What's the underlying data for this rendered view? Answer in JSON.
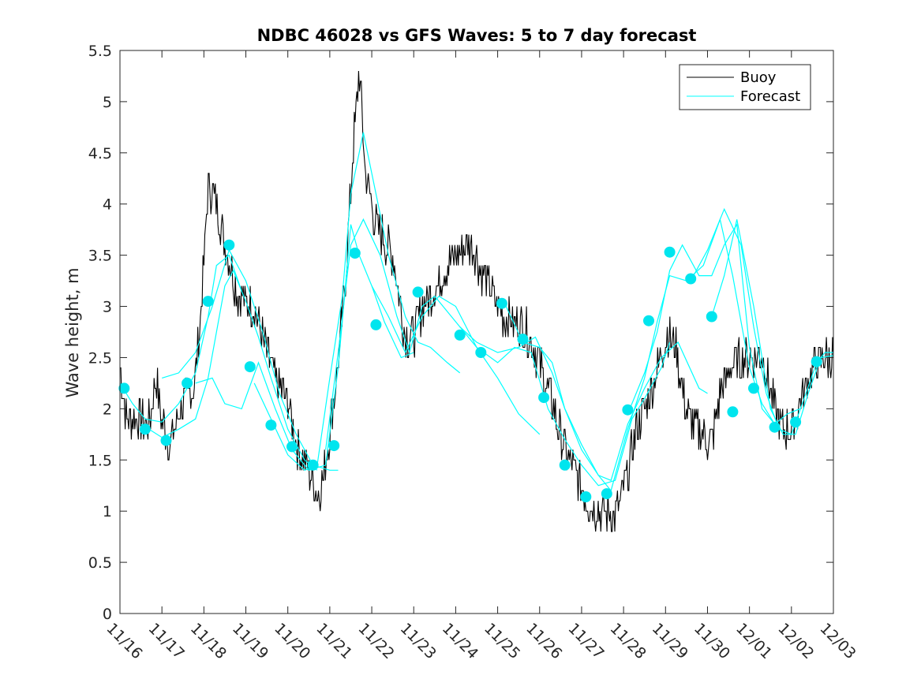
{
  "chart_data": {
    "type": "line",
    "title": "NDBC 46028 vs GFS Waves: 5 to 7 day forecast",
    "xlabel": "",
    "ylabel": "Wave height, m",
    "xlim": [
      0,
      17
    ],
    "ylim": [
      0,
      5.5
    ],
    "yticks": [
      0,
      0.5,
      1,
      1.5,
      2,
      2.5,
      3,
      3.5,
      4,
      4.5,
      5,
      5.5
    ],
    "ytick_labels": [
      "0",
      "0.5",
      "1",
      "1.5",
      "2",
      "2.5",
      "3",
      "3.5",
      "4",
      "4.5",
      "5",
      "5.5"
    ],
    "xtick_labels": [
      "11/16",
      "11/17",
      "11/18",
      "11/19",
      "11/20",
      "11/21",
      "11/22",
      "11/23",
      "11/24",
      "11/25",
      "11/26",
      "11/27",
      "11/28",
      "11/29",
      "11/30",
      "12/01",
      "12/02",
      "12/03"
    ],
    "legend": {
      "position": "top-right",
      "entries": [
        "Buoy",
        "Forecast"
      ]
    },
    "colors": {
      "buoy": "#000000",
      "forecast": "#00ffff",
      "markers": "#00e5ee",
      "axis": "#262626"
    },
    "buoy_anchors": [
      [
        0,
        2.4
      ],
      [
        0.15,
        1.9
      ],
      [
        0.4,
        1.9
      ],
      [
        0.7,
        1.85
      ],
      [
        0.85,
        2.3
      ],
      [
        1.0,
        1.9
      ],
      [
        1.2,
        1.65
      ],
      [
        1.45,
        2.0
      ],
      [
        1.75,
        2.2
      ],
      [
        1.9,
        2.8
      ],
      [
        2.0,
        3.4
      ],
      [
        2.1,
        4.2
      ],
      [
        2.25,
        4.05
      ],
      [
        2.45,
        3.7
      ],
      [
        2.6,
        3.5
      ],
      [
        2.8,
        3.1
      ],
      [
        3.0,
        3.05
      ],
      [
        3.2,
        3.0
      ],
      [
        3.4,
        2.7
      ],
      [
        3.7,
        2.3
      ],
      [
        4.0,
        2.05
      ],
      [
        4.2,
        1.65
      ],
      [
        4.45,
        1.45
      ],
      [
        4.7,
        1.15
      ],
      [
        4.85,
        1.3
      ],
      [
        5.0,
        1.8
      ],
      [
        5.2,
        2.45
      ],
      [
        5.4,
        3.4
      ],
      [
        5.55,
        4.5
      ],
      [
        5.7,
        5.3
      ],
      [
        5.85,
        4.3
      ],
      [
        6.1,
        3.8
      ],
      [
        6.5,
        3.5
      ],
      [
        6.8,
        2.7
      ],
      [
        7.0,
        2.7
      ],
      [
        7.2,
        3.0
      ],
      [
        7.5,
        3.15
      ],
      [
        7.8,
        3.4
      ],
      [
        8.1,
        3.55
      ],
      [
        8.4,
        3.6
      ],
      [
        8.6,
        3.35
      ],
      [
        8.9,
        3.1
      ],
      [
        9.1,
        2.9
      ],
      [
        9.4,
        2.85
      ],
      [
        9.7,
        2.75
      ],
      [
        10.0,
        2.45
      ],
      [
        10.3,
        2.05
      ],
      [
        10.6,
        1.6
      ],
      [
        10.9,
        1.35
      ],
      [
        11.2,
        1.05
      ],
      [
        11.5,
        1.0
      ],
      [
        11.8,
        0.95
      ],
      [
        12.1,
        1.35
      ],
      [
        12.3,
        1.8
      ],
      [
        12.6,
        2.1
      ],
      [
        12.85,
        2.45
      ],
      [
        13.05,
        2.75
      ],
      [
        13.25,
        2.6
      ],
      [
        13.45,
        2.05
      ],
      [
        13.7,
        1.8
      ],
      [
        13.9,
        1.75
      ],
      [
        14.1,
        1.65
      ],
      [
        14.3,
        2.15
      ],
      [
        14.6,
        2.45
      ],
      [
        15.0,
        2.5
      ],
      [
        15.3,
        2.55
      ],
      [
        15.6,
        2.0
      ],
      [
        15.8,
        1.8
      ],
      [
        16.0,
        1.8
      ],
      [
        16.2,
        2.05
      ],
      [
        16.5,
        2.4
      ],
      [
        16.8,
        2.5
      ],
      [
        17.0,
        2.5
      ]
    ],
    "forecast_series": [
      [
        [
          0.0,
          2.25
        ],
        [
          0.3,
          2.05
        ],
        [
          0.6,
          1.9
        ],
        [
          1.0,
          1.87
        ],
        [
          1.4,
          2.05
        ],
        [
          1.8,
          2.35
        ],
        [
          2.1,
          2.9
        ],
        [
          2.3,
          3.4
        ],
        [
          2.6,
          3.5
        ],
        [
          2.9,
          3.15
        ]
      ],
      [
        [
          0.5,
          1.85
        ],
        [
          1.0,
          1.72
        ],
        [
          1.4,
          1.8
        ],
        [
          1.8,
          1.9
        ],
        [
          2.1,
          2.3
        ],
        [
          2.3,
          2.75
        ],
        [
          2.5,
          3.2
        ],
        [
          2.7,
          3.35
        ],
        [
          3.0,
          3.05
        ],
        [
          3.3,
          2.7
        ],
        [
          3.6,
          2.3
        ],
        [
          4.0,
          1.8
        ],
        [
          4.4,
          1.5
        ],
        [
          4.7,
          1.4
        ]
      ],
      [
        [
          1.0,
          2.3
        ],
        [
          1.4,
          2.35
        ],
        [
          1.8,
          2.55
        ],
        [
          2.2,
          3.0
        ],
        [
          2.6,
          3.55
        ],
        [
          3.0,
          3.25
        ],
        [
          3.4,
          2.75
        ],
        [
          3.8,
          2.15
        ],
        [
          4.2,
          1.75
        ],
        [
          4.6,
          1.45
        ],
        [
          5.0,
          1.4
        ],
        [
          5.2,
          1.4
        ]
      ],
      [
        [
          1.8,
          2.25
        ],
        [
          2.2,
          2.3
        ],
        [
          2.5,
          2.05
        ],
        [
          2.9,
          2.0
        ],
        [
          3.3,
          2.45
        ],
        [
          3.7,
          2.0
        ],
        [
          4.1,
          1.6
        ],
        [
          4.5,
          1.4
        ],
        [
          4.9,
          1.45
        ],
        [
          5.2,
          2.4
        ],
        [
          5.5,
          3.8
        ],
        [
          5.7,
          3.5
        ],
        [
          6.0,
          3.2
        ],
        [
          6.3,
          2.85
        ],
        [
          6.7,
          2.5
        ],
        [
          7.0,
          2.55
        ]
      ],
      [
        [
          3.2,
          2.25
        ],
        [
          3.6,
          1.9
        ],
        [
          4.0,
          1.55
        ],
        [
          4.4,
          1.4
        ],
        [
          4.7,
          1.45
        ],
        [
          5.0,
          2.3
        ],
        [
          5.3,
          3.1
        ],
        [
          5.5,
          4.1
        ],
        [
          5.8,
          4.7
        ],
        [
          6.1,
          4.1
        ],
        [
          6.4,
          3.5
        ],
        [
          6.8,
          2.9
        ],
        [
          7.1,
          2.65
        ],
        [
          7.4,
          2.6
        ],
        [
          7.8,
          2.45
        ],
        [
          8.1,
          2.35
        ]
      ],
      [
        [
          4.9,
          1.6
        ],
        [
          5.2,
          2.55
        ],
        [
          5.5,
          3.6
        ],
        [
          5.8,
          3.85
        ],
        [
          6.2,
          3.5
        ],
        [
          6.6,
          2.9
        ],
        [
          6.9,
          2.55
        ],
        [
          7.2,
          3.0
        ],
        [
          7.5,
          3.1
        ],
        [
          8.0,
          2.85
        ],
        [
          8.5,
          2.6
        ],
        [
          9.0,
          2.3
        ],
        [
          9.5,
          1.95
        ],
        [
          10.0,
          1.75
        ]
      ],
      [
        [
          6.0,
          3.2
        ],
        [
          6.4,
          2.9
        ],
        [
          6.8,
          2.55
        ],
        [
          7.2,
          2.9
        ],
        [
          7.6,
          3.1
        ],
        [
          8.0,
          3.0
        ],
        [
          8.5,
          2.6
        ],
        [
          9.0,
          2.45
        ],
        [
          9.4,
          2.6
        ],
        [
          9.8,
          2.55
        ],
        [
          10.2,
          2.0
        ],
        [
          10.6,
          1.7
        ],
        [
          11.0,
          1.45
        ],
        [
          11.4,
          1.25
        ],
        [
          11.8,
          1.3
        ],
        [
          12.2,
          1.9
        ],
        [
          12.5,
          2.1
        ],
        [
          12.9,
          2.4
        ],
        [
          13.1,
          2.65
        ]
      ],
      [
        [
          8.1,
          2.8
        ],
        [
          8.5,
          2.65
        ],
        [
          9.0,
          2.55
        ],
        [
          9.5,
          2.6
        ],
        [
          9.9,
          2.7
        ],
        [
          10.3,
          2.35
        ],
        [
          10.6,
          2.0
        ],
        [
          11.0,
          1.65
        ],
        [
          11.4,
          1.35
        ],
        [
          11.7,
          1.3
        ],
        [
          12.1,
          1.85
        ],
        [
          12.5,
          2.2
        ],
        [
          12.9,
          2.5
        ],
        [
          13.3,
          2.65
        ],
        [
          13.8,
          2.2
        ],
        [
          14.0,
          2.15
        ]
      ],
      [
        [
          9.2,
          3.0
        ],
        [
          9.6,
          2.65
        ],
        [
          10.0,
          2.6
        ],
        [
          10.3,
          2.45
        ],
        [
          10.6,
          2.0
        ],
        [
          11.0,
          1.6
        ],
        [
          11.4,
          1.35
        ],
        [
          11.7,
          1.2
        ],
        [
          12.1,
          1.8
        ],
        [
          12.5,
          2.3
        ],
        [
          12.8,
          2.85
        ],
        [
          13.1,
          3.3
        ],
        [
          13.5,
          3.25
        ],
        [
          13.9,
          3.4
        ],
        [
          14.3,
          3.85
        ],
        [
          14.6,
          3.3
        ],
        [
          15.0,
          2.4
        ],
        [
          15.3,
          2.05
        ],
        [
          15.6,
          1.85
        ]
      ],
      [
        [
          12.1,
          1.95
        ],
        [
          12.5,
          2.35
        ],
        [
          12.8,
          2.75
        ],
        [
          13.1,
          3.35
        ],
        [
          13.4,
          3.6
        ],
        [
          13.8,
          3.3
        ],
        [
          14.1,
          3.3
        ],
        [
          14.4,
          3.6
        ],
        [
          14.7,
          3.8
        ],
        [
          15.0,
          2.6
        ],
        [
          15.3,
          2.0
        ],
        [
          15.6,
          1.85
        ],
        [
          15.9,
          1.95
        ],
        [
          16.2,
          2.0
        ]
      ],
      [
        [
          13.6,
          3.25
        ],
        [
          14.0,
          3.55
        ],
        [
          14.4,
          3.95
        ],
        [
          14.8,
          3.6
        ],
        [
          15.1,
          2.8
        ],
        [
          15.4,
          2.15
        ],
        [
          15.7,
          1.8
        ],
        [
          16.0,
          1.75
        ],
        [
          16.3,
          2.1
        ],
        [
          16.6,
          2.45
        ],
        [
          16.8,
          2.55
        ],
        [
          17.0,
          2.55
        ]
      ],
      [
        [
          14.1,
          2.9
        ],
        [
          14.4,
          3.3
        ],
        [
          14.7,
          3.85
        ],
        [
          15.1,
          3.0
        ],
        [
          15.5,
          2.0
        ],
        [
          15.8,
          1.75
        ],
        [
          16.1,
          1.75
        ],
        [
          16.4,
          2.15
        ],
        [
          16.7,
          2.5
        ],
        [
          17.0,
          2.52
        ]
      ]
    ],
    "forecast_markers": [
      [
        0.1,
        2.2
      ],
      [
        0.6,
        1.8
      ],
      [
        1.1,
        1.69
      ],
      [
        1.6,
        2.25
      ],
      [
        2.1,
        3.05
      ],
      [
        2.6,
        3.6
      ],
      [
        3.1,
        2.41
      ],
      [
        3.6,
        1.84
      ],
      [
        4.1,
        1.63
      ],
      [
        4.6,
        1.45
      ],
      [
        5.1,
        1.64
      ],
      [
        5.6,
        3.52
      ],
      [
        6.1,
        2.82
      ],
      [
        7.1,
        3.14
      ],
      [
        8.1,
        2.72
      ],
      [
        8.6,
        2.55
      ],
      [
        9.1,
        3.03
      ],
      [
        9.6,
        2.68
      ],
      [
        10.1,
        2.11
      ],
      [
        10.6,
        1.45
      ],
      [
        11.1,
        1.14
      ],
      [
        11.6,
        1.17
      ],
      [
        12.1,
        1.99
      ],
      [
        12.6,
        2.86
      ],
      [
        13.1,
        3.53
      ],
      [
        13.6,
        3.27
      ],
      [
        14.1,
        2.9
      ],
      [
        14.6,
        1.97
      ],
      [
        15.1,
        2.2
      ],
      [
        15.6,
        1.82
      ],
      [
        16.1,
        1.87
      ],
      [
        16.6,
        2.46
      ]
    ]
  }
}
